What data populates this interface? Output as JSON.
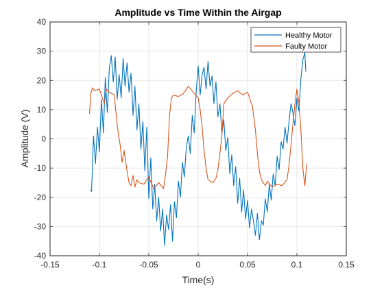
{
  "chart_data": {
    "type": "line",
    "title": "Amplitude vs Time Within the Airgap",
    "xlabel": "Time(s)",
    "ylabel": "Amplitude (V)",
    "xlim": [
      -0.15,
      0.15
    ],
    "ylim": [
      -40,
      40
    ],
    "xticks": [
      -0.15,
      -0.1,
      -0.05,
      0,
      0.05,
      0.1,
      0.15
    ],
    "xtick_labels": [
      "-0.15",
      "-0.1",
      "-0.05",
      "0",
      "0.05",
      "0.1",
      "0.15"
    ],
    "yticks": [
      -40,
      -30,
      -20,
      -10,
      0,
      10,
      20,
      30,
      40
    ],
    "ytick_labels": [
      "-40",
      "-30",
      "-20",
      "-10",
      "0",
      "10",
      "20",
      "30",
      "40"
    ],
    "grid": true,
    "legend_position": "top-right",
    "series": [
      {
        "name": "Healthy Motor",
        "color": "#0072BD",
        "x": [
          -0.109,
          -0.108,
          -0.106,
          -0.104,
          -0.102,
          -0.1,
          -0.098,
          -0.096,
          -0.094,
          -0.092,
          -0.09,
          -0.088,
          -0.086,
          -0.084,
          -0.082,
          -0.08,
          -0.078,
          -0.076,
          -0.074,
          -0.072,
          -0.07,
          -0.068,
          -0.066,
          -0.064,
          -0.062,
          -0.06,
          -0.058,
          -0.056,
          -0.054,
          -0.052,
          -0.05,
          -0.048,
          -0.046,
          -0.044,
          -0.042,
          -0.04,
          -0.038,
          -0.036,
          -0.034,
          -0.032,
          -0.03,
          -0.028,
          -0.026,
          -0.024,
          -0.022,
          -0.02,
          -0.018,
          -0.016,
          -0.014,
          -0.012,
          -0.01,
          -0.008,
          -0.006,
          -0.004,
          -0.002,
          0.0,
          0.002,
          0.004,
          0.006,
          0.008,
          0.01,
          0.012,
          0.014,
          0.016,
          0.018,
          0.02,
          0.022,
          0.024,
          0.026,
          0.028,
          0.03,
          0.032,
          0.034,
          0.036,
          0.038,
          0.04,
          0.042,
          0.044,
          0.046,
          0.048,
          0.05,
          0.052,
          0.054,
          0.056,
          0.058,
          0.06,
          0.062,
          0.064,
          0.066,
          0.068,
          0.07,
          0.072,
          0.074,
          0.076,
          0.078,
          0.08,
          0.082,
          0.084,
          0.086,
          0.088,
          0.09,
          0.092,
          0.094,
          0.096,
          0.098,
          0.1,
          0.102,
          0.104,
          0.106,
          0.108,
          0.109
        ],
        "y": [
          -17.5,
          -18,
          1,
          -8.5,
          4,
          -4.5,
          13.5,
          2,
          21,
          9,
          24,
          28.5,
          19.5,
          28,
          13.5,
          22,
          14,
          27.5,
          18,
          26,
          16,
          22.5,
          8,
          18,
          3,
          12,
          -3.5,
          6,
          -11,
          4,
          -20.5,
          -6.5,
          -24,
          -15.5,
          -28,
          -20,
          -31.5,
          -24,
          -36.5,
          -26,
          -31,
          -22.5,
          -35,
          -21.5,
          -27,
          -14.5,
          -20,
          -8,
          -13,
          -3,
          1,
          -5,
          8,
          2,
          16,
          25,
          15,
          22,
          24.5,
          17,
          26.5,
          18,
          21.5,
          12,
          19.5,
          7.5,
          12,
          2,
          6.5,
          -4,
          0.5,
          -12,
          -5.5,
          -16,
          -9.5,
          -22,
          -13.5,
          -25,
          -17.5,
          -27.5,
          -21,
          -30.5,
          -24,
          -28,
          -33,
          -25.5,
          -34.5,
          -28,
          -29.5,
          -20.5,
          -25,
          -15.5,
          -21,
          -12,
          -16,
          -6,
          -10.5,
          -1,
          -3.5,
          4,
          -1.5,
          6,
          12,
          9,
          4.5,
          14,
          9.5,
          20.5,
          27,
          29.5,
          23
        ]
      },
      {
        "name": "Faulty Motor",
        "color": "#D95319",
        "x": [
          -0.11,
          -0.109,
          -0.107,
          -0.105,
          -0.1,
          -0.095,
          -0.093,
          -0.09,
          -0.085,
          -0.083,
          -0.081,
          -0.079,
          -0.077,
          -0.075,
          -0.072,
          -0.07,
          -0.068,
          -0.066,
          -0.064,
          -0.062,
          -0.06,
          -0.055,
          -0.05,
          -0.045,
          -0.04,
          -0.035,
          -0.033,
          -0.031,
          -0.029,
          -0.027,
          -0.025,
          -0.02,
          -0.015,
          -0.01,
          -0.005,
          0.0,
          0.002,
          0.004,
          0.006,
          0.008,
          0.01,
          0.015,
          0.018,
          0.02,
          0.022,
          0.024,
          0.026,
          0.03,
          0.035,
          0.04,
          0.045,
          0.05,
          0.055,
          0.058,
          0.06,
          0.062,
          0.064,
          0.066,
          0.068,
          0.07,
          0.075,
          0.08,
          0.085,
          0.09,
          0.092,
          0.094,
          0.096,
          0.098,
          0.1,
          0.102,
          0.104,
          0.106,
          0.108,
          0.11
        ],
        "y": [
          8.5,
          15,
          17.5,
          16.5,
          17,
          12,
          17,
          16,
          15,
          8,
          2,
          -2,
          -8,
          -4,
          -11,
          -15,
          -16,
          -12.5,
          -16.5,
          -14,
          -15,
          -15.5,
          -13,
          -17,
          -15,
          -17,
          -12,
          -6,
          8,
          14,
          15,
          14.5,
          15.5,
          18,
          16,
          14,
          10,
          4,
          -4,
          -10,
          -14,
          -15,
          -13.5,
          -10.5,
          -5,
          1,
          12,
          14,
          15.5,
          16.5,
          15,
          16,
          11,
          3,
          -5,
          -11,
          -14,
          -15,
          -16,
          -14.5,
          -16.5,
          -15.5,
          -16,
          -14,
          -9,
          -2,
          5,
          12,
          17,
          12.5,
          3,
          -10,
          -16,
          -8.5
        ]
      }
    ]
  }
}
